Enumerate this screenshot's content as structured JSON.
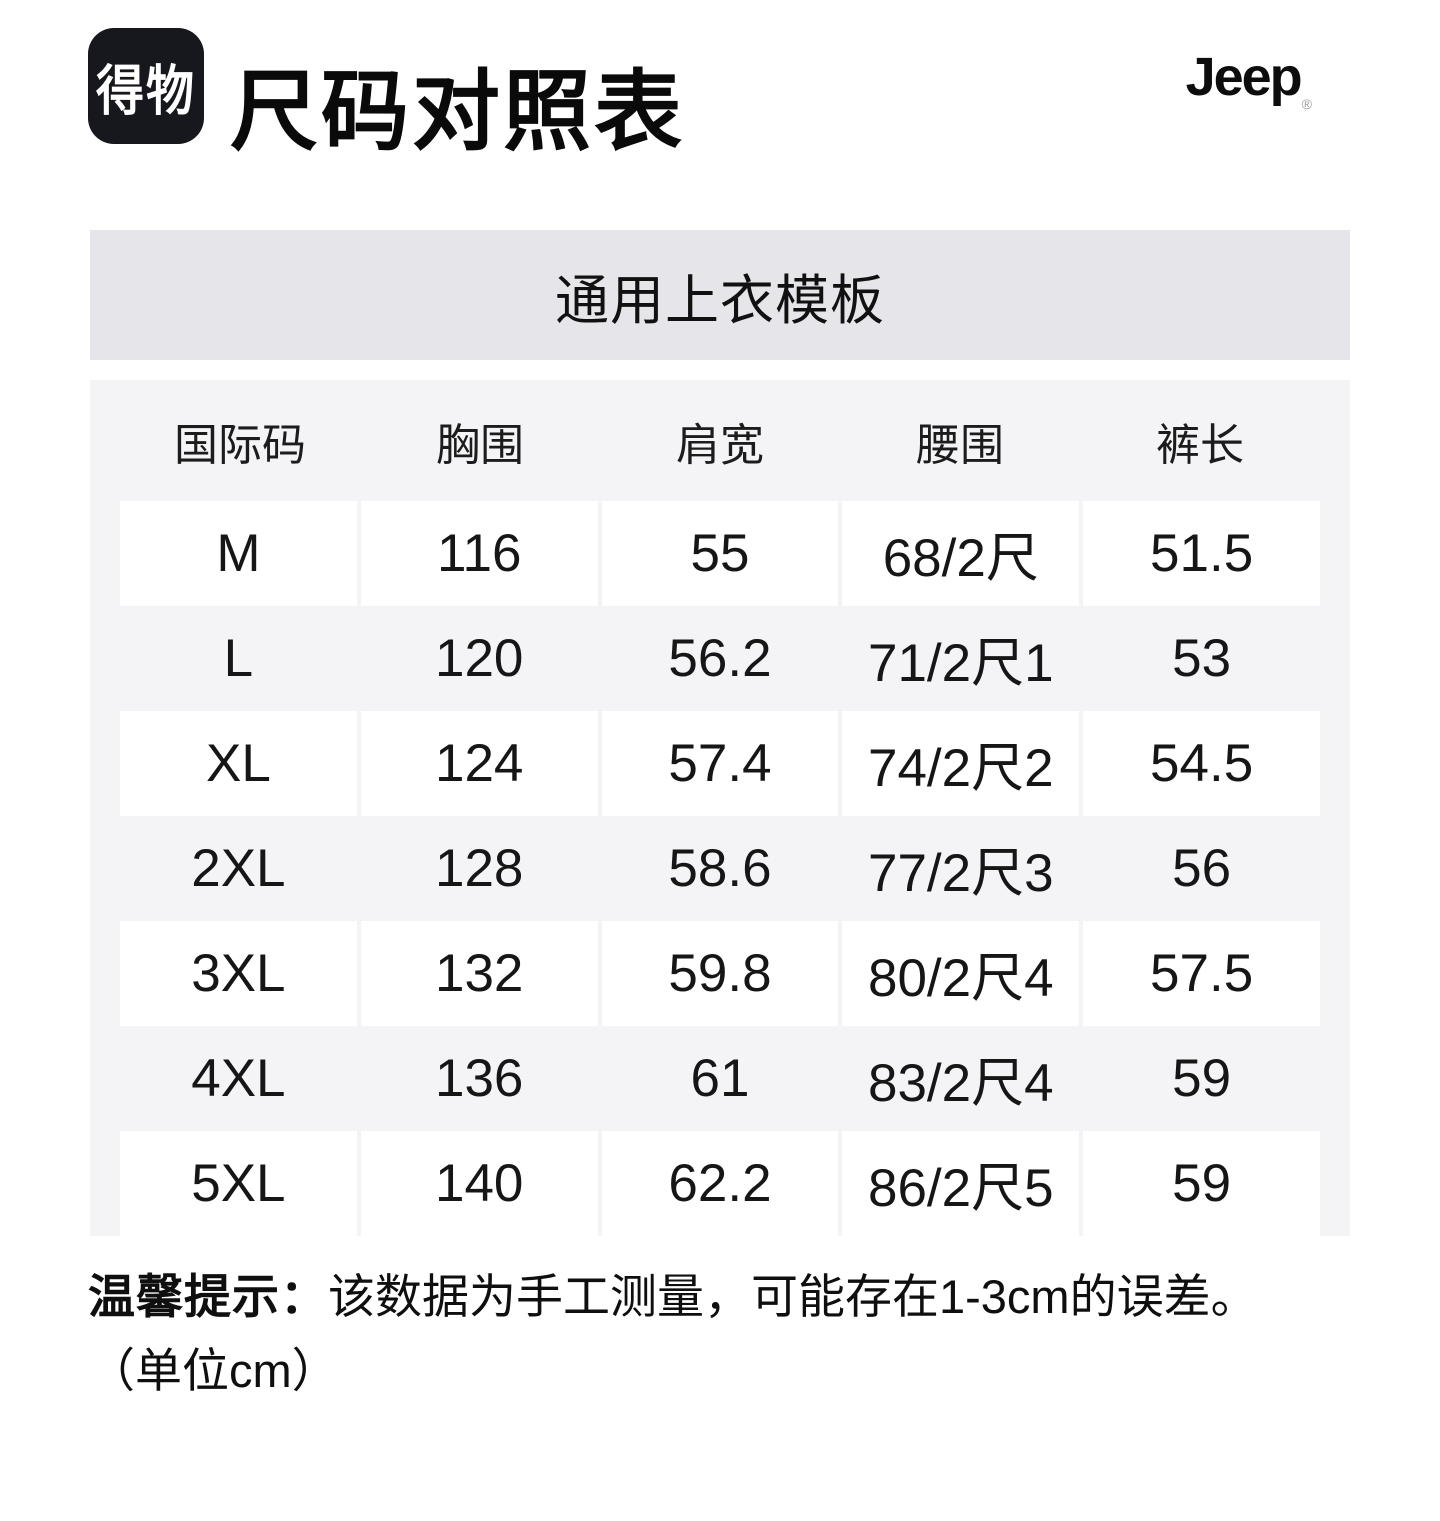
{
  "header": {
    "logo_text": "得物",
    "title": "尺码对照表",
    "brand": "Jeep",
    "brand_reg": "®"
  },
  "banner": {
    "title": "通用上衣模板"
  },
  "size_table": {
    "columns": [
      "国际码",
      "胸围",
      "肩宽",
      "腰围",
      "裤长"
    ],
    "rows": [
      [
        "M",
        "116",
        "55",
        "68/2尺",
        "51.5"
      ],
      [
        "L",
        "120",
        "56.2",
        "71/2尺1",
        "53"
      ],
      [
        "XL",
        "124",
        "57.4",
        "74/2尺2",
        "54.5"
      ],
      [
        "2XL",
        "128",
        "58.6",
        "77/2尺3",
        "56"
      ],
      [
        "3XL",
        "132",
        "59.8",
        "80/2尺4",
        "57.5"
      ],
      [
        "4XL",
        "136",
        "61",
        "83/2尺4",
        "59"
      ],
      [
        "5XL",
        "140",
        "62.2",
        "86/2尺5",
        "59"
      ]
    ]
  },
  "footer": {
    "note_label": "温馨提示：",
    "note_text": "该数据为手工测量，可能存在1-3cm的误差。",
    "unit_text": "（单位cm）"
  },
  "colors": {
    "banner_bg": "#e5e5ea",
    "table_bg": "#f4f4f7",
    "cell_bg": "#ffffff",
    "logo_bg": "#16181d",
    "text": "#141414"
  }
}
